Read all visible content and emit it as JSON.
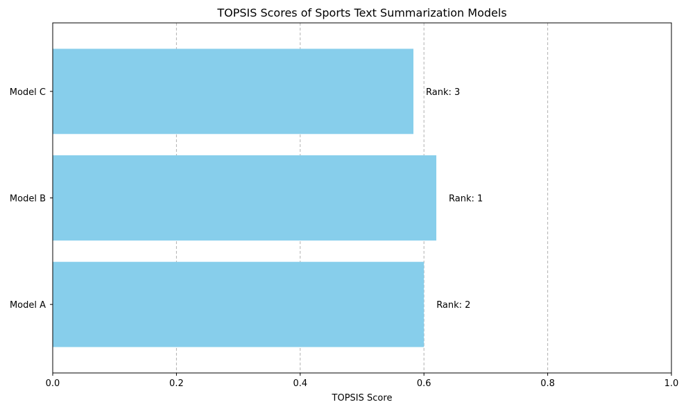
{
  "chart_data": {
    "type": "bar",
    "orientation": "horizontal",
    "title": "TOPSIS Scores of Sports Text Summarization Models",
    "xlabel": "TOPSIS Score",
    "ylabel": "",
    "categories": [
      "Model A",
      "Model B",
      "Model C"
    ],
    "values": [
      0.6,
      0.62,
      0.583
    ],
    "bar_labels": [
      "Rank: 2",
      "Rank: 1",
      "Rank: 3"
    ],
    "xlim": [
      0,
      1
    ],
    "xticks": [
      "0.0",
      "0.2",
      "0.4",
      "0.6",
      "0.8",
      "1.0"
    ],
    "xtick_values": [
      0,
      0.2,
      0.4,
      0.6,
      0.8,
      1.0
    ],
    "grid": "x-axis dashed",
    "legend": "none",
    "bar_color": "#87ceeb",
    "grid_color": "#b0b0b0"
  }
}
